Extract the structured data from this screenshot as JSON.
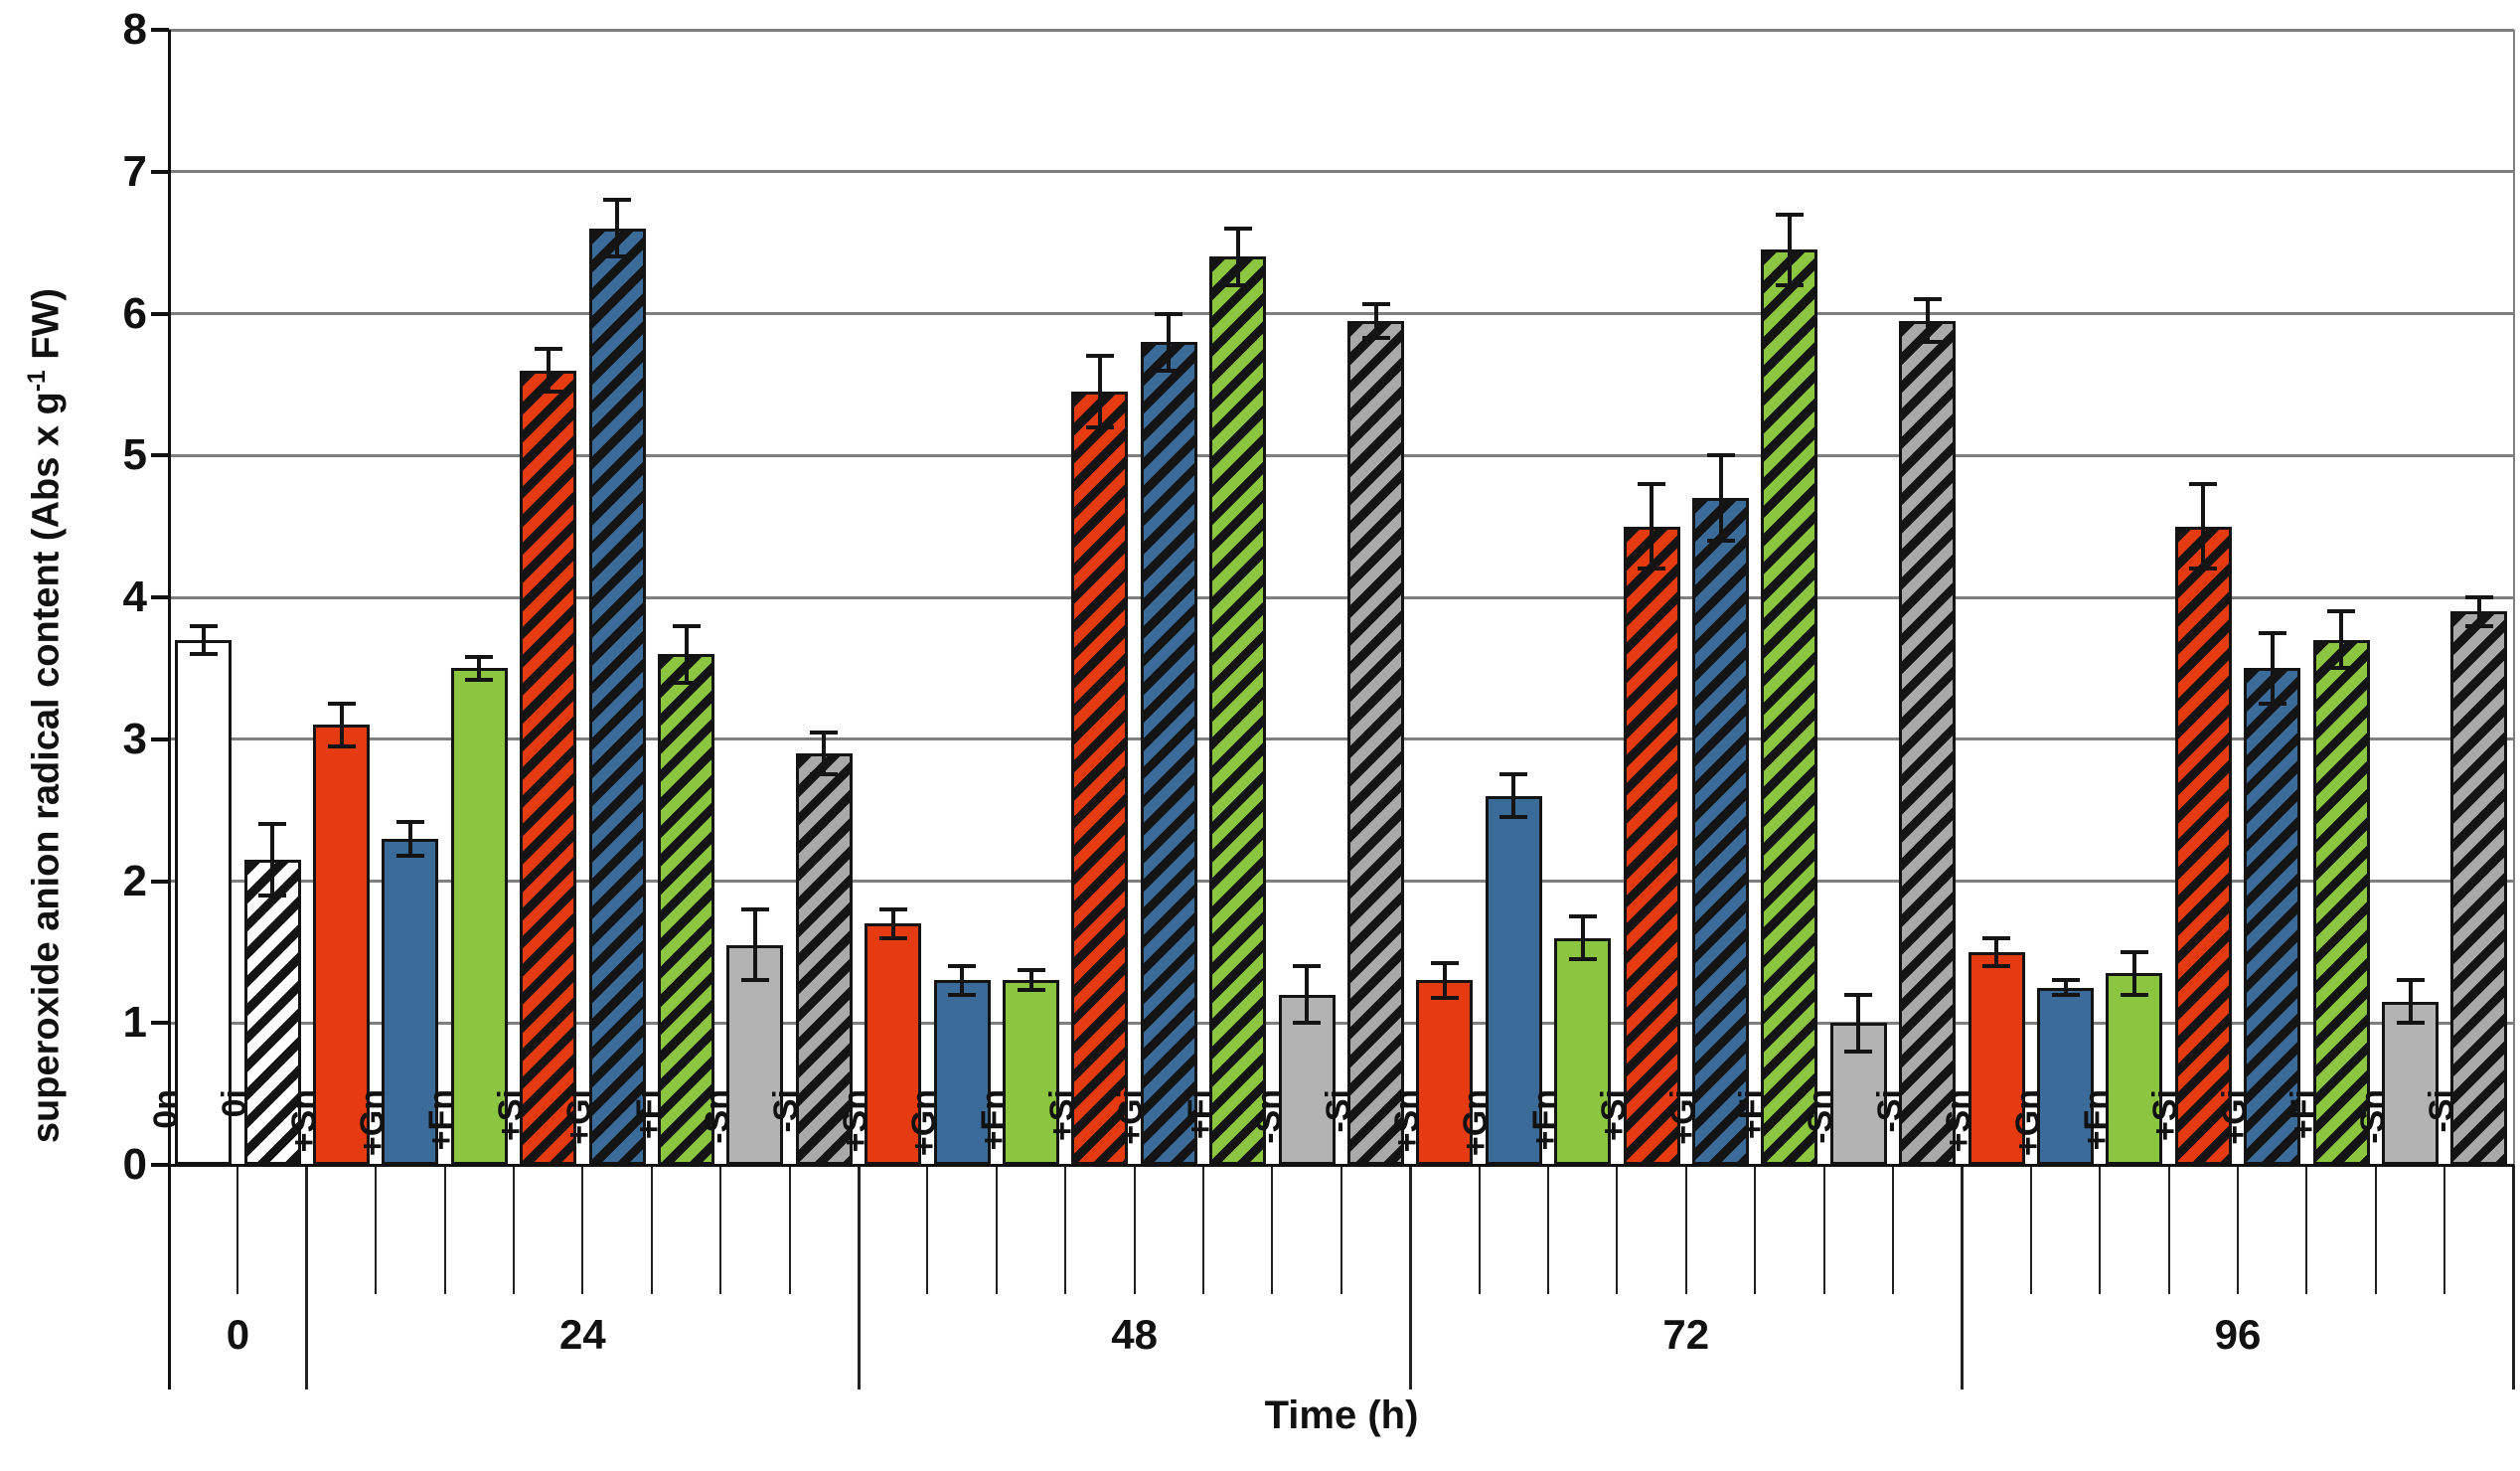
{
  "figure": {
    "ylabel_prefix": "superoxide anion radical content (Abs x g",
    "ylabel_sup": "-1",
    "ylabel_suffix": " FW)",
    "xlabel": "Time (h)"
  },
  "chart_data": {
    "type": "bar",
    "title": "",
    "xlabel": "Time (h)",
    "ylabel": "superoxide anion radical content (Abs x g-1 FW)",
    "ylim": [
      0,
      8
    ],
    "yticks": [
      0,
      1,
      2,
      3,
      4,
      5,
      6,
      7,
      8
    ],
    "grid": true,
    "legend": "none",
    "error_bars": "symmetric",
    "treatment_labels": [
      "0n",
      "0i",
      "+Sn",
      "+Gn",
      "+Fn",
      "+Si",
      "+Gi",
      "+Fi",
      "-Sn",
      "-Si"
    ],
    "colors": {
      "white": "#ffffff",
      "red": "#e63b11",
      "blue": "#3b6b99",
      "green": "#8cc540",
      "gray": "#b3b3b3",
      "grayHatchFill": "#a9a9a9",
      "hatchStripe": "#141414",
      "gridline": "#7f7f7f",
      "axis": "#111111"
    },
    "groups": [
      {
        "label": "0",
        "bars": [
          {
            "label": "0n",
            "value": 3.7,
            "err": 0.1,
            "color": "white",
            "hatch": false
          },
          {
            "label": "0i",
            "value": 2.15,
            "err": 0.25,
            "color": "white",
            "hatch": true
          }
        ]
      },
      {
        "label": "24",
        "bars": [
          {
            "label": "+Sn",
            "value": 3.1,
            "err": 0.15,
            "color": "red",
            "hatch": false
          },
          {
            "label": "+Gn",
            "value": 2.3,
            "err": 0.12,
            "color": "blue",
            "hatch": false
          },
          {
            "label": "+Fn",
            "value": 3.5,
            "err": 0.08,
            "color": "green",
            "hatch": false
          },
          {
            "label": "+Si",
            "value": 5.6,
            "err": 0.15,
            "color": "red",
            "hatch": true
          },
          {
            "label": "+Gi",
            "value": 6.6,
            "err": 0.2,
            "color": "blue",
            "hatch": true
          },
          {
            "label": "+Fi",
            "value": 3.6,
            "err": 0.2,
            "color": "green",
            "hatch": true
          },
          {
            "label": "-Sn",
            "value": 1.55,
            "err": 0.25,
            "color": "gray",
            "hatch": false
          },
          {
            "label": "-Si",
            "value": 2.9,
            "err": 0.15,
            "color": "grayHatchFill",
            "hatch": true
          }
        ]
      },
      {
        "label": "48",
        "bars": [
          {
            "label": "+Sn",
            "value": 1.7,
            "err": 0.1,
            "color": "red",
            "hatch": false
          },
          {
            "label": "+Gn",
            "value": 1.3,
            "err": 0.1,
            "color": "blue",
            "hatch": false
          },
          {
            "label": "+Fn",
            "value": 1.3,
            "err": 0.07,
            "color": "green",
            "hatch": false
          },
          {
            "label": "+Si",
            "value": 5.45,
            "err": 0.25,
            "color": "red",
            "hatch": true
          },
          {
            "label": "+Gi",
            "value": 5.8,
            "err": 0.2,
            "color": "blue",
            "hatch": true
          },
          {
            "label": "+Fi",
            "value": 6.4,
            "err": 0.2,
            "color": "green",
            "hatch": true
          },
          {
            "label": "-Sn",
            "value": 1.2,
            "err": 0.2,
            "color": "gray",
            "hatch": false
          },
          {
            "label": "-Si",
            "value": 5.95,
            "err": 0.12,
            "color": "grayHatchFill",
            "hatch": true
          }
        ]
      },
      {
        "label": "72",
        "bars": [
          {
            "label": "+Sn",
            "value": 1.3,
            "err": 0.12,
            "color": "red",
            "hatch": false
          },
          {
            "label": "+Gn",
            "value": 2.6,
            "err": 0.15,
            "color": "blue",
            "hatch": false
          },
          {
            "label": "+Fn",
            "value": 1.6,
            "err": 0.15,
            "color": "green",
            "hatch": false
          },
          {
            "label": "+Si",
            "value": 4.5,
            "err": 0.3,
            "color": "red",
            "hatch": true
          },
          {
            "label": "+Gi",
            "value": 4.7,
            "err": 0.3,
            "color": "blue",
            "hatch": true
          },
          {
            "label": "+Fi",
            "value": 6.45,
            "err": 0.25,
            "color": "green",
            "hatch": true
          },
          {
            "label": "-Sn",
            "value": 1.0,
            "err": 0.2,
            "color": "gray",
            "hatch": false
          },
          {
            "label": "-Si",
            "value": 5.95,
            "err": 0.15,
            "color": "grayHatchFill",
            "hatch": true
          }
        ]
      },
      {
        "label": "96",
        "bars": [
          {
            "label": "+Sn",
            "value": 1.5,
            "err": 0.1,
            "color": "red",
            "hatch": false
          },
          {
            "label": "+Gn",
            "value": 1.25,
            "err": 0.05,
            "color": "blue",
            "hatch": false
          },
          {
            "label": "+Fn",
            "value": 1.35,
            "err": 0.15,
            "color": "green",
            "hatch": false
          },
          {
            "label": "+Si",
            "value": 4.5,
            "err": 0.3,
            "color": "red",
            "hatch": true
          },
          {
            "label": "+Gi",
            "value": 3.5,
            "err": 0.25,
            "color": "blue",
            "hatch": true
          },
          {
            "label": "+Fi",
            "value": 3.7,
            "err": 0.2,
            "color": "green",
            "hatch": true
          },
          {
            "label": "-Sn",
            "value": 1.15,
            "err": 0.15,
            "color": "gray",
            "hatch": false
          },
          {
            "label": "-Si",
            "value": 3.9,
            "err": 0.1,
            "color": "grayHatchFill",
            "hatch": true
          }
        ]
      }
    ]
  }
}
